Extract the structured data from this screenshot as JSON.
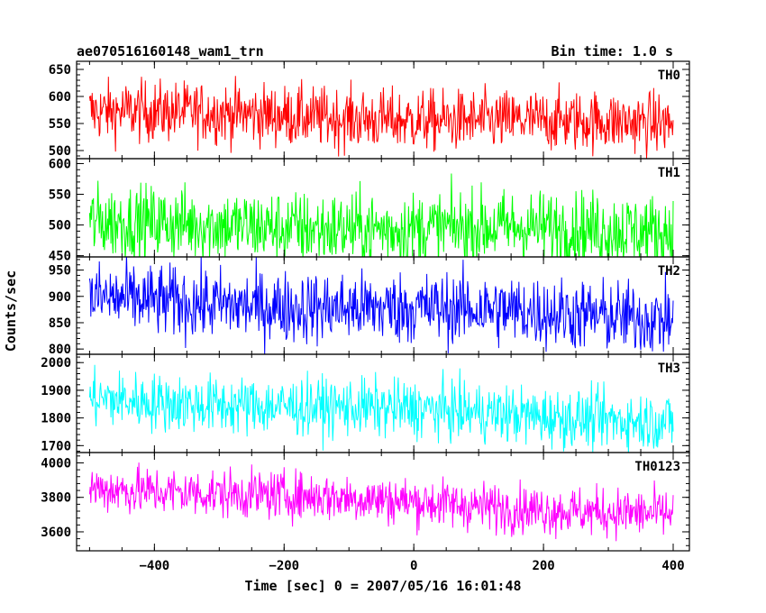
{
  "chart_data": {
    "type": "line",
    "title": "ae070516160148_wam1_trn",
    "subtitle": "Bin time: 1.0 s",
    "xlabel": "Time [sec] 0 = 2007/05/16 16:01:48",
    "ylabel": "Counts/sec",
    "xlim": [
      -520,
      425
    ],
    "x_ticks": [
      "−400",
      "−200",
      "0",
      "200",
      "400"
    ],
    "x_tick_values": [
      -400,
      -200,
      0,
      200,
      400
    ],
    "x_start": -500,
    "x_end": 400,
    "bin": 1.0,
    "panels": [
      {
        "name": "TH0",
        "color": "#ff0000",
        "ylim": [
          485,
          665
        ],
        "y_ticks": [
          500,
          550,
          600,
          650
        ],
        "trend_start": 572,
        "trend_end": 548,
        "noise": 28
      },
      {
        "name": "TH1",
        "color": "#00ff00",
        "ylim": [
          448,
          608
        ],
        "y_ticks": [
          450,
          500,
          550,
          600
        ],
        "trend_start": 502,
        "trend_end": 490,
        "noise": 30
      },
      {
        "name": "TH2",
        "color": "#0000ff",
        "ylim": [
          790,
          975
        ],
        "y_ticks": [
          800,
          850,
          900,
          950
        ],
        "trend_start": 895,
        "trend_end": 860,
        "noise": 34
      },
      {
        "name": "TH3",
        "color": "#00ffff",
        "ylim": [
          1675,
          2030
        ],
        "y_ticks": [
          1700,
          1800,
          1900,
          2000
        ],
        "trend_start": 1870,
        "trend_end": 1790,
        "noise": 52
      },
      {
        "name": "TH0123",
        "color": "#ff00ff",
        "ylim": [
          3490,
          4060
        ],
        "y_ticks": [
          3600,
          3800,
          4000
        ],
        "trend_start": 3860,
        "trend_end": 3700,
        "noise": 70
      }
    ]
  }
}
